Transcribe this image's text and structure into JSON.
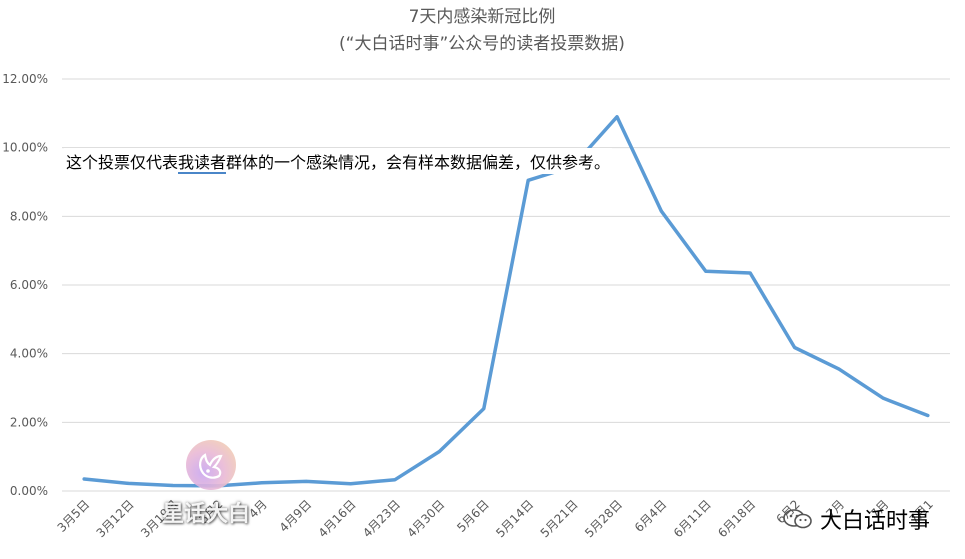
{
  "chart_data": {
    "type": "line",
    "title": "7天内感染新冠比例",
    "subtitle": "(“大白话时事”公众号的读者投票数据)",
    "xlabel": "",
    "ylabel": "",
    "ylim": [
      0,
      0.12
    ],
    "yticks": [
      "0.00%",
      "2.00%",
      "4.00%",
      "6.00%",
      "8.00%",
      "10.00%",
      "12.00%"
    ],
    "categories": [
      "3月5日",
      "3月12日",
      "3月19日",
      "3月26日",
      "4月2日",
      "4月9日",
      "4月16日",
      "4月23日",
      "4月30日",
      "5月6日",
      "5月14日",
      "5月21日",
      "5月28日",
      "6月4日",
      "6月11日",
      "6月18日",
      "6月25日",
      "7月2日",
      "7月9日",
      "7月16日"
    ],
    "category_labels": [
      "3月5日",
      "3月12日",
      "3月19日",
      "3月2",
      "4月",
      "4月9日",
      "4月16日",
      "4月23日",
      "4月30日",
      "5月6日",
      "5月14日",
      "5月21日",
      "5月28日",
      "6月4日",
      "6月11日",
      "6月18日",
      "6月2",
      "7月",
      "7月",
      "7月1"
    ],
    "series": [
      {
        "values": [
          0.0035,
          0.0022,
          0.0016,
          0.0015,
          0.0024,
          0.0028,
          0.0021,
          0.0033,
          0.0115,
          0.024,
          0.0905,
          0.0945,
          0.109,
          0.0815,
          0.064,
          0.0635,
          0.0418,
          0.0355,
          0.027,
          0.022
        ],
        "color": "#5b9bd5"
      }
    ],
    "grid": true,
    "legend": "none",
    "annotation": "这个投票仅代表我读者群体的一个感染情况，会有样本数据偏差，仅供参考。"
  },
  "annotation_parts": {
    "before": "这个投票仅代表",
    "underlined": "我读者",
    "after": "群体的一个感染情况，会有样本数据偏差，仅供参考。"
  },
  "watermarks": {
    "left": "星话大白",
    "right": "大白话时事"
  },
  "icons": {
    "left_logo": "rabbit-logo-icon",
    "right_logo": "wechat-icon"
  },
  "colors": {
    "line": "#5b9bd5",
    "grid": "#d9d9d9",
    "text": "#595959"
  }
}
